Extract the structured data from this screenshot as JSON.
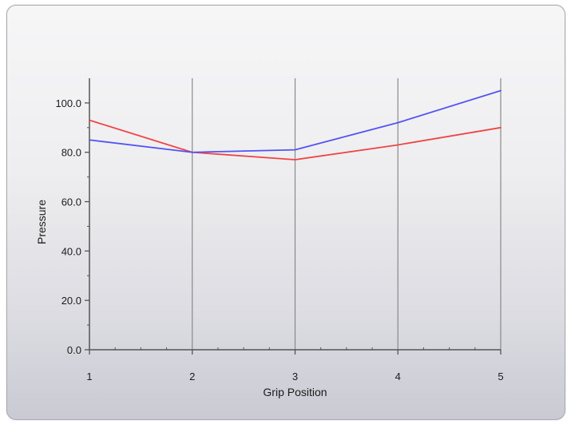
{
  "chart_data": {
    "type": "line",
    "title": "",
    "xlabel": "Grip Position",
    "ylabel": "Pressure",
    "x": [
      1,
      2,
      3,
      4,
      5
    ],
    "x_tick_labels": [
      "1",
      "2",
      "3",
      "4",
      "5"
    ],
    "y_tick_labels": [
      "0.0",
      "20.0",
      "40.0",
      "60.0",
      "80.0",
      "100.0"
    ],
    "y_ticks": [
      0,
      20,
      40,
      60,
      80,
      100
    ],
    "ylim": [
      0,
      110
    ],
    "xlim": [
      1,
      5
    ],
    "grid": "vertical",
    "legend": "none",
    "series": [
      {
        "color": "#ef4545",
        "values": [
          93,
          80,
          77,
          83,
          90
        ]
      },
      {
        "color": "#5353f5",
        "values": [
          85,
          80,
          81,
          92,
          105
        ]
      }
    ]
  },
  "colors": {
    "axis": "#555555",
    "gridline": "#8a8a8a"
  }
}
